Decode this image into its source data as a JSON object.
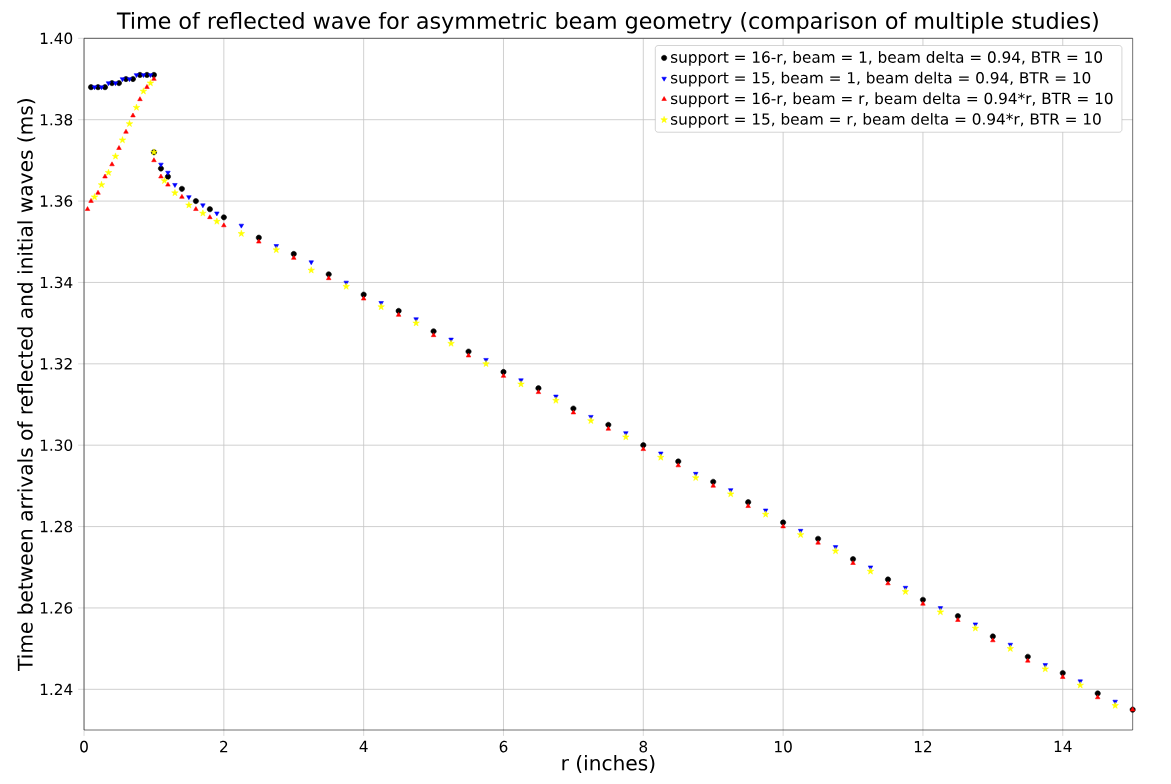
{
  "chart_data": {
    "type": "scatter",
    "title": "Time of reflected wave for asymmetric beam geometry (comparison of multiple studies)",
    "xlabel": "r (inches)",
    "ylabel": "Time between arrivals of reflected and initial waves (ms)",
    "xlim": [
      0,
      15
    ],
    "ylim": [
      1.23,
      1.4
    ],
    "xticks": [
      0,
      2,
      4,
      6,
      8,
      10,
      12,
      14
    ],
    "yticks": [
      {
        "value": 1.24,
        "label": "1.24"
      },
      {
        "value": 1.26,
        "label": "1.26"
      },
      {
        "value": 1.28,
        "label": "1.28"
      },
      {
        "value": 1.3,
        "label": "1.30"
      },
      {
        "value": 1.32,
        "label": "1.32"
      },
      {
        "value": 1.34,
        "label": "1.34"
      },
      {
        "value": 1.36,
        "label": "1.36"
      },
      {
        "value": 1.38,
        "label": "1.38"
      },
      {
        "value": 1.4,
        "label": "1.40"
      }
    ],
    "grid": true,
    "legend": "top right",
    "series": [
      {
        "name": "support = 16-r, beam = 1, beam delta = 0.94, BTR = 10",
        "color": "#000000",
        "marker": "circle",
        "x": [
          0.1,
          0.2,
          0.3,
          0.4,
          0.5,
          0.6,
          0.7,
          0.8,
          0.9,
          1.0,
          1.0,
          1.1,
          1.2,
          1.4,
          1.6,
          1.8,
          2.0,
          2.5,
          3.0,
          3.5,
          4.0,
          4.5,
          5.0,
          5.5,
          6.0,
          6.5,
          7.0,
          7.5,
          8.0,
          8.5,
          9.0,
          9.5,
          10.0,
          10.5,
          11.0,
          11.5,
          12.0,
          12.5,
          13.0,
          13.5,
          14.0,
          14.5,
          15.0
        ],
        "values": [
          1.388,
          1.388,
          1.388,
          1.389,
          1.389,
          1.39,
          1.39,
          1.391,
          1.391,
          1.391,
          1.372,
          1.368,
          1.366,
          1.363,
          1.36,
          1.358,
          1.356,
          1.351,
          1.347,
          1.342,
          1.337,
          1.333,
          1.328,
          1.323,
          1.318,
          1.314,
          1.309,
          1.305,
          1.3,
          1.296,
          1.291,
          1.286,
          1.281,
          1.277,
          1.272,
          1.267,
          1.262,
          1.258,
          1.253,
          1.248,
          1.244,
          1.239,
          1.235
        ]
      },
      {
        "name": "support = 15, beam = 1, beam delta = 0.94, BTR = 10",
        "color": "#0000ff",
        "marker": "triangle-down",
        "x": [
          0.15,
          0.25,
          0.35,
          0.45,
          0.55,
          0.65,
          0.75,
          0.85,
          0.95,
          1.1,
          1.2,
          1.3,
          1.5,
          1.7,
          1.9,
          2.25,
          2.75,
          3.25,
          3.75,
          4.25,
          4.75,
          5.25,
          5.75,
          6.25,
          6.75,
          7.25,
          7.75,
          8.25,
          8.75,
          9.25,
          9.75,
          10.25,
          10.75,
          11.25,
          11.75,
          12.25,
          12.75,
          13.25,
          13.75,
          14.25,
          14.75
        ],
        "values": [
          1.388,
          1.388,
          1.389,
          1.389,
          1.39,
          1.39,
          1.391,
          1.391,
          1.391,
          1.369,
          1.367,
          1.364,
          1.361,
          1.359,
          1.357,
          1.354,
          1.349,
          1.345,
          1.34,
          1.335,
          1.331,
          1.326,
          1.321,
          1.316,
          1.312,
          1.307,
          1.303,
          1.298,
          1.293,
          1.289,
          1.284,
          1.279,
          1.275,
          1.27,
          1.265,
          1.26,
          1.256,
          1.251,
          1.246,
          1.242,
          1.237
        ]
      },
      {
        "name": "support = 16-r, beam = r, beam delta = 0.94*r, BTR = 10",
        "color": "#ff0000",
        "marker": "triangle",
        "x": [
          0.05,
          0.1,
          0.2,
          0.3,
          0.4,
          0.5,
          0.6,
          0.7,
          0.8,
          0.9,
          1.0,
          1.0,
          1.1,
          1.2,
          1.4,
          1.6,
          1.8,
          2.0,
          2.5,
          3.0,
          3.5,
          4.0,
          4.5,
          5.0,
          5.5,
          6.0,
          6.5,
          7.0,
          7.5,
          8.0,
          8.5,
          9.0,
          9.5,
          10.0,
          10.5,
          11.0,
          11.5,
          12.0,
          12.5,
          13.0,
          13.5,
          14.0,
          14.5,
          15.0
        ],
        "values": [
          1.358,
          1.36,
          1.362,
          1.366,
          1.369,
          1.373,
          1.377,
          1.381,
          1.385,
          1.388,
          1.39,
          1.37,
          1.366,
          1.364,
          1.361,
          1.358,
          1.356,
          1.354,
          1.35,
          1.346,
          1.341,
          1.336,
          1.332,
          1.327,
          1.322,
          1.317,
          1.313,
          1.308,
          1.304,
          1.299,
          1.295,
          1.29,
          1.285,
          1.28,
          1.276,
          1.271,
          1.266,
          1.261,
          1.257,
          1.252,
          1.247,
          1.243,
          1.238,
          1.235
        ]
      },
      {
        "name": "support = 15, beam = r, beam delta = 0.94*r, BTR = 10",
        "color": "#ffff00",
        "marker": "star",
        "x": [
          0.15,
          0.25,
          0.35,
          0.45,
          0.55,
          0.65,
          0.75,
          0.85,
          0.95,
          1.0,
          1.15,
          1.3,
          1.5,
          1.7,
          1.9,
          2.25,
          2.75,
          3.25,
          3.75,
          4.25,
          4.75,
          5.25,
          5.75,
          6.25,
          6.75,
          7.25,
          7.75,
          8.25,
          8.75,
          9.25,
          9.75,
          10.25,
          10.75,
          11.25,
          11.75,
          12.25,
          12.75,
          13.25,
          13.75,
          14.25,
          14.75
        ],
        "values": [
          1.361,
          1.364,
          1.367,
          1.371,
          1.375,
          1.379,
          1.383,
          1.387,
          1.389,
          1.372,
          1.365,
          1.362,
          1.359,
          1.357,
          1.355,
          1.352,
          1.348,
          1.343,
          1.339,
          1.334,
          1.33,
          1.325,
          1.32,
          1.315,
          1.311,
          1.306,
          1.302,
          1.297,
          1.292,
          1.288,
          1.283,
          1.278,
          1.274,
          1.269,
          1.264,
          1.259,
          1.255,
          1.25,
          1.245,
          1.241,
          1.236
        ]
      }
    ]
  }
}
